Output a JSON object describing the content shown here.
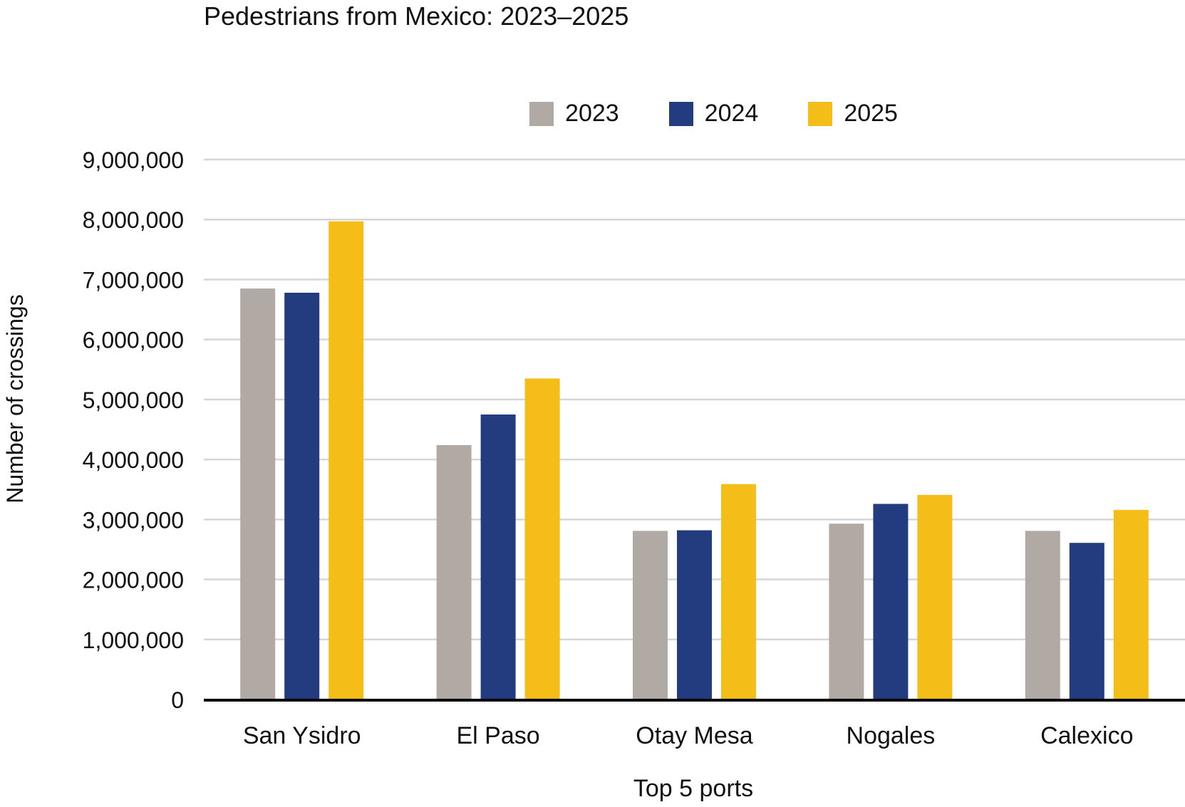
{
  "chart_data": {
    "type": "bar",
    "title": "Pedestrians from Mexico: 2023–2025",
    "xlabel": "Top 5 ports",
    "ylabel": "Number of crossings",
    "categories": [
      "San Ysidro",
      "El Paso",
      "Otay Mesa",
      "Nogales",
      "Calexico"
    ],
    "series": [
      {
        "name": "2023",
        "color": "#b1a9a4",
        "values": [
          6850000,
          4240000,
          2810000,
          2930000,
          2810000
        ]
      },
      {
        "name": "2024",
        "color": "#233c80",
        "values": [
          6780000,
          4750000,
          2820000,
          3260000,
          2610000
        ]
      },
      {
        "name": "2025",
        "color": "#f5bd17",
        "values": [
          7970000,
          5350000,
          3590000,
          3410000,
          3160000
        ]
      }
    ],
    "ylim": [
      0,
      9000000
    ],
    "yticks": [
      "0",
      "1,000,000",
      "2,000,000",
      "3,000,000",
      "4,000,000",
      "5,000,000",
      "6,000,000",
      "7,000,000",
      "8,000,000",
      "9,000,000"
    ],
    "grid": true,
    "legend_position": "top"
  }
}
